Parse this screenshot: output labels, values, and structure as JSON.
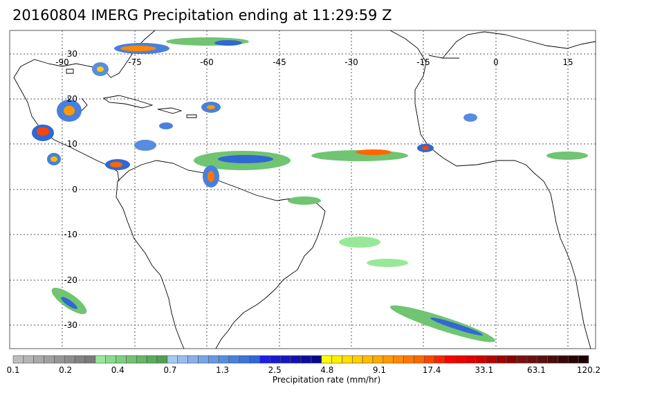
{
  "title": "20160804 IMERG Precipitation ending at 11:29:59 Z",
  "map": {
    "lon_labels": [
      "-90",
      "-75",
      "-60",
      "-45",
      "-30",
      "-15",
      "0",
      "15"
    ],
    "lat_labels": [
      "30",
      "20",
      "10",
      "0",
      "-10",
      "-20",
      "-30"
    ]
  },
  "colorbar": {
    "title": "Precipitation rate (mm/hr)",
    "tick_labels": [
      "0.1",
      "0.2",
      "0.4",
      "0.7",
      "1.3",
      "2.5",
      "4.8",
      "9.1",
      "17.4",
      "33.1",
      "63.1",
      "120.2"
    ],
    "colors": [
      "#bdbdbd",
      "#b4b4b4",
      "#aaaaaa",
      "#a0a0a0",
      "#969696",
      "#8c8c8c",
      "#828282",
      "#7a7a7a",
      "#98e89a",
      "#88dc8c",
      "#7cd07e",
      "#70c472",
      "#64b866",
      "#58ac5a",
      "#4ea050",
      "#a8c8f4",
      "#98bcf0",
      "#88b0ec",
      "#78a4e8",
      "#6898e4",
      "#588ce0",
      "#4880dc",
      "#3c74d8",
      "#3068d4",
      "#1c1cf0",
      "#1818dc",
      "#1414c8",
      "#1010b4",
      "#0c0ca0",
      "#08088c",
      "#ffff00",
      "#ffee00",
      "#ffdd00",
      "#ffcc00",
      "#ffbb00",
      "#ffaa00",
      "#ff9900",
      "#ff8800",
      "#ff7700",
      "#ff6600",
      "#ff4400",
      "#ff2200",
      "#ff0000",
      "#ee0000",
      "#dd0000",
      "#cc0000",
      "#b80000",
      "#a00000",
      "#8c0000",
      "#7a1010",
      "#6a1010",
      "#5a1010",
      "#4a0c0c",
      "#3a0808",
      "#2a0404",
      "#1c0000"
    ]
  }
}
